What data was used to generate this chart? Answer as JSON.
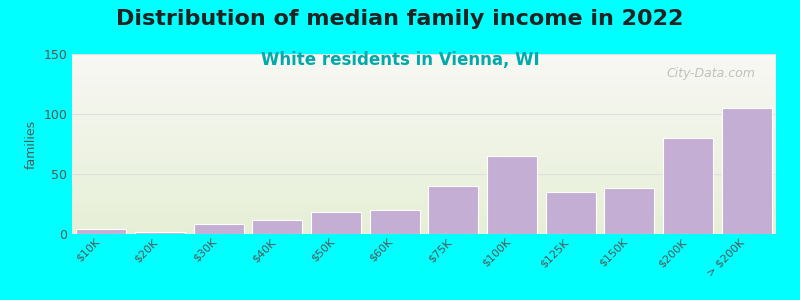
{
  "title": "Distribution of median family income in 2022",
  "subtitle": "White residents in Vienna, WI",
  "ylabel": "families",
  "categories": [
    "$10K",
    "$20K",
    "$30K",
    "$40K",
    "$50K",
    "$60K",
    "$75K",
    "$100K",
    "$125K",
    "$150K",
    "$200K",
    "> $200K"
  ],
  "values": [
    4,
    2,
    8,
    12,
    18,
    20,
    40,
    65,
    35,
    38,
    80,
    105
  ],
  "bar_color": "#c4aed4",
  "bar_edge_color": "#ffffff",
  "ylim": [
    0,
    150
  ],
  "yticks": [
    0,
    50,
    100,
    150
  ],
  "background_color": "#00ffff",
  "plot_bg_top_color": "#f8f8f4",
  "plot_bg_bottom_color": "#e6efd6",
  "title_fontsize": 16,
  "subtitle_fontsize": 12,
  "subtitle_color": "#00aaaa",
  "watermark": "City-Data.com",
  "grid_color": "#e0e0e0"
}
